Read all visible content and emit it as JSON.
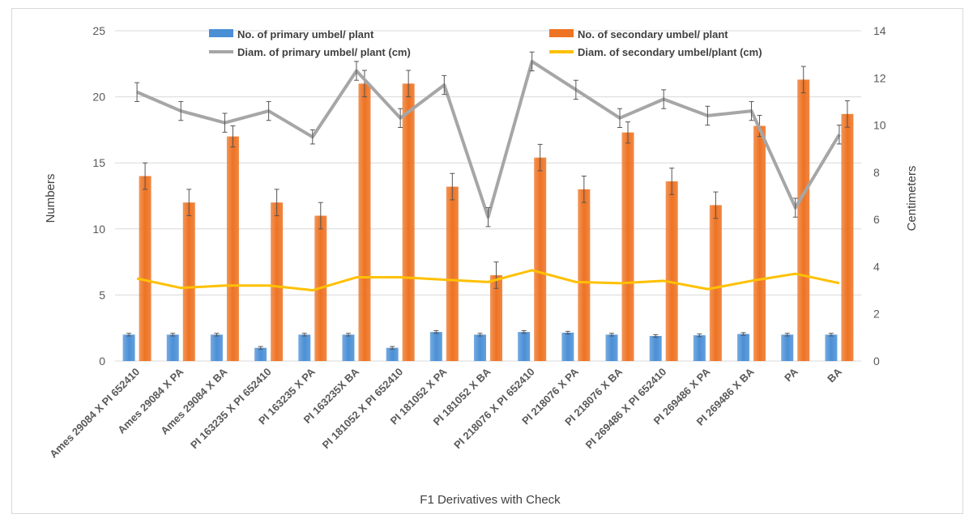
{
  "chart_data": {
    "type": "bar",
    "title": "",
    "xlabel": "F1 Derivatives with Check",
    "ylabel": "Numbers",
    "y2label": "Centimeters",
    "ylim": [
      0,
      25
    ],
    "y2lim": [
      0,
      14
    ],
    "yticks": [
      "0",
      "5",
      "10",
      "15",
      "20",
      "25"
    ],
    "y2ticks": [
      "0",
      "2",
      "4",
      "6",
      "8",
      "10",
      "12",
      "14"
    ],
    "grid": true,
    "legend_position": "top",
    "categories": [
      "Ames 29084 X PI 652410",
      "Ames 29084 X PA",
      "Ames 29084 X BA",
      "PI 163235 X PI 652410",
      "PI 163235 X PA",
      "PI 163235X BA",
      "PI 181052 X PI 652410",
      "PI 181052 X PA",
      "PI 181052 X BA",
      "PI 218076 X PI 652410",
      "PI 218076 X PA",
      "PI 218076 X BA",
      "PI 269486 X PI 652410",
      "PI 269486 X PA",
      "PI 269486 X BA",
      "PA",
      "BA"
    ],
    "series": [
      {
        "name": "No. of primary umbel/ plant",
        "type": "bar",
        "axis": "left",
        "color": "#4a8fd6",
        "values": [
          2.0,
          2.0,
          2.0,
          1.0,
          2.0,
          2.0,
          1.0,
          2.2,
          2.0,
          2.2,
          2.15,
          2.0,
          1.9,
          1.95,
          2.05,
          2.0,
          2.0
        ],
        "errors": [
          0.1,
          0.1,
          0.1,
          0.1,
          0.1,
          0.1,
          0.1,
          0.1,
          0.1,
          0.1,
          0.1,
          0.1,
          0.1,
          0.1,
          0.1,
          0.1,
          0.1
        ]
      },
      {
        "name": "No. of secondary umbel/ plant",
        "type": "bar",
        "axis": "left",
        "color": "#ee7323",
        "values": [
          14.0,
          12.0,
          17.0,
          12.0,
          11.0,
          21.0,
          21.0,
          13.2,
          6.5,
          15.4,
          13.0,
          17.3,
          13.6,
          11.8,
          17.8,
          21.3,
          18.7
        ],
        "errors": [
          1.0,
          1.0,
          0.8,
          1.0,
          1.0,
          1.0,
          1.0,
          1.0,
          1.0,
          1.0,
          1.0,
          0.8,
          1.0,
          1.0,
          0.8,
          1.0,
          1.0
        ]
      },
      {
        "name": "Diam. of primary umbel/ plant (cm)",
        "type": "line",
        "axis": "right",
        "color": "#a6a6a6",
        "values": [
          11.4,
          10.6,
          10.1,
          10.6,
          9.5,
          12.3,
          10.3,
          11.7,
          6.1,
          12.7,
          11.5,
          10.3,
          11.1,
          10.4,
          10.6,
          6.5,
          9.6
        ],
        "errors": [
          0.4,
          0.4,
          0.4,
          0.4,
          0.3,
          0.4,
          0.4,
          0.4,
          0.4,
          0.4,
          0.4,
          0.4,
          0.4,
          0.4,
          0.4,
          0.4,
          0.4
        ]
      },
      {
        "name": "Diam. of secondary umbel/plant (cm)",
        "type": "line",
        "axis": "right",
        "color": "#ffc000",
        "values": [
          3.5,
          3.1,
          3.2,
          3.2,
          3.0,
          3.55,
          3.55,
          3.45,
          3.35,
          3.85,
          3.35,
          3.3,
          3.4,
          3.05,
          3.4,
          3.7,
          3.3
        ],
        "errors": []
      }
    ]
  }
}
